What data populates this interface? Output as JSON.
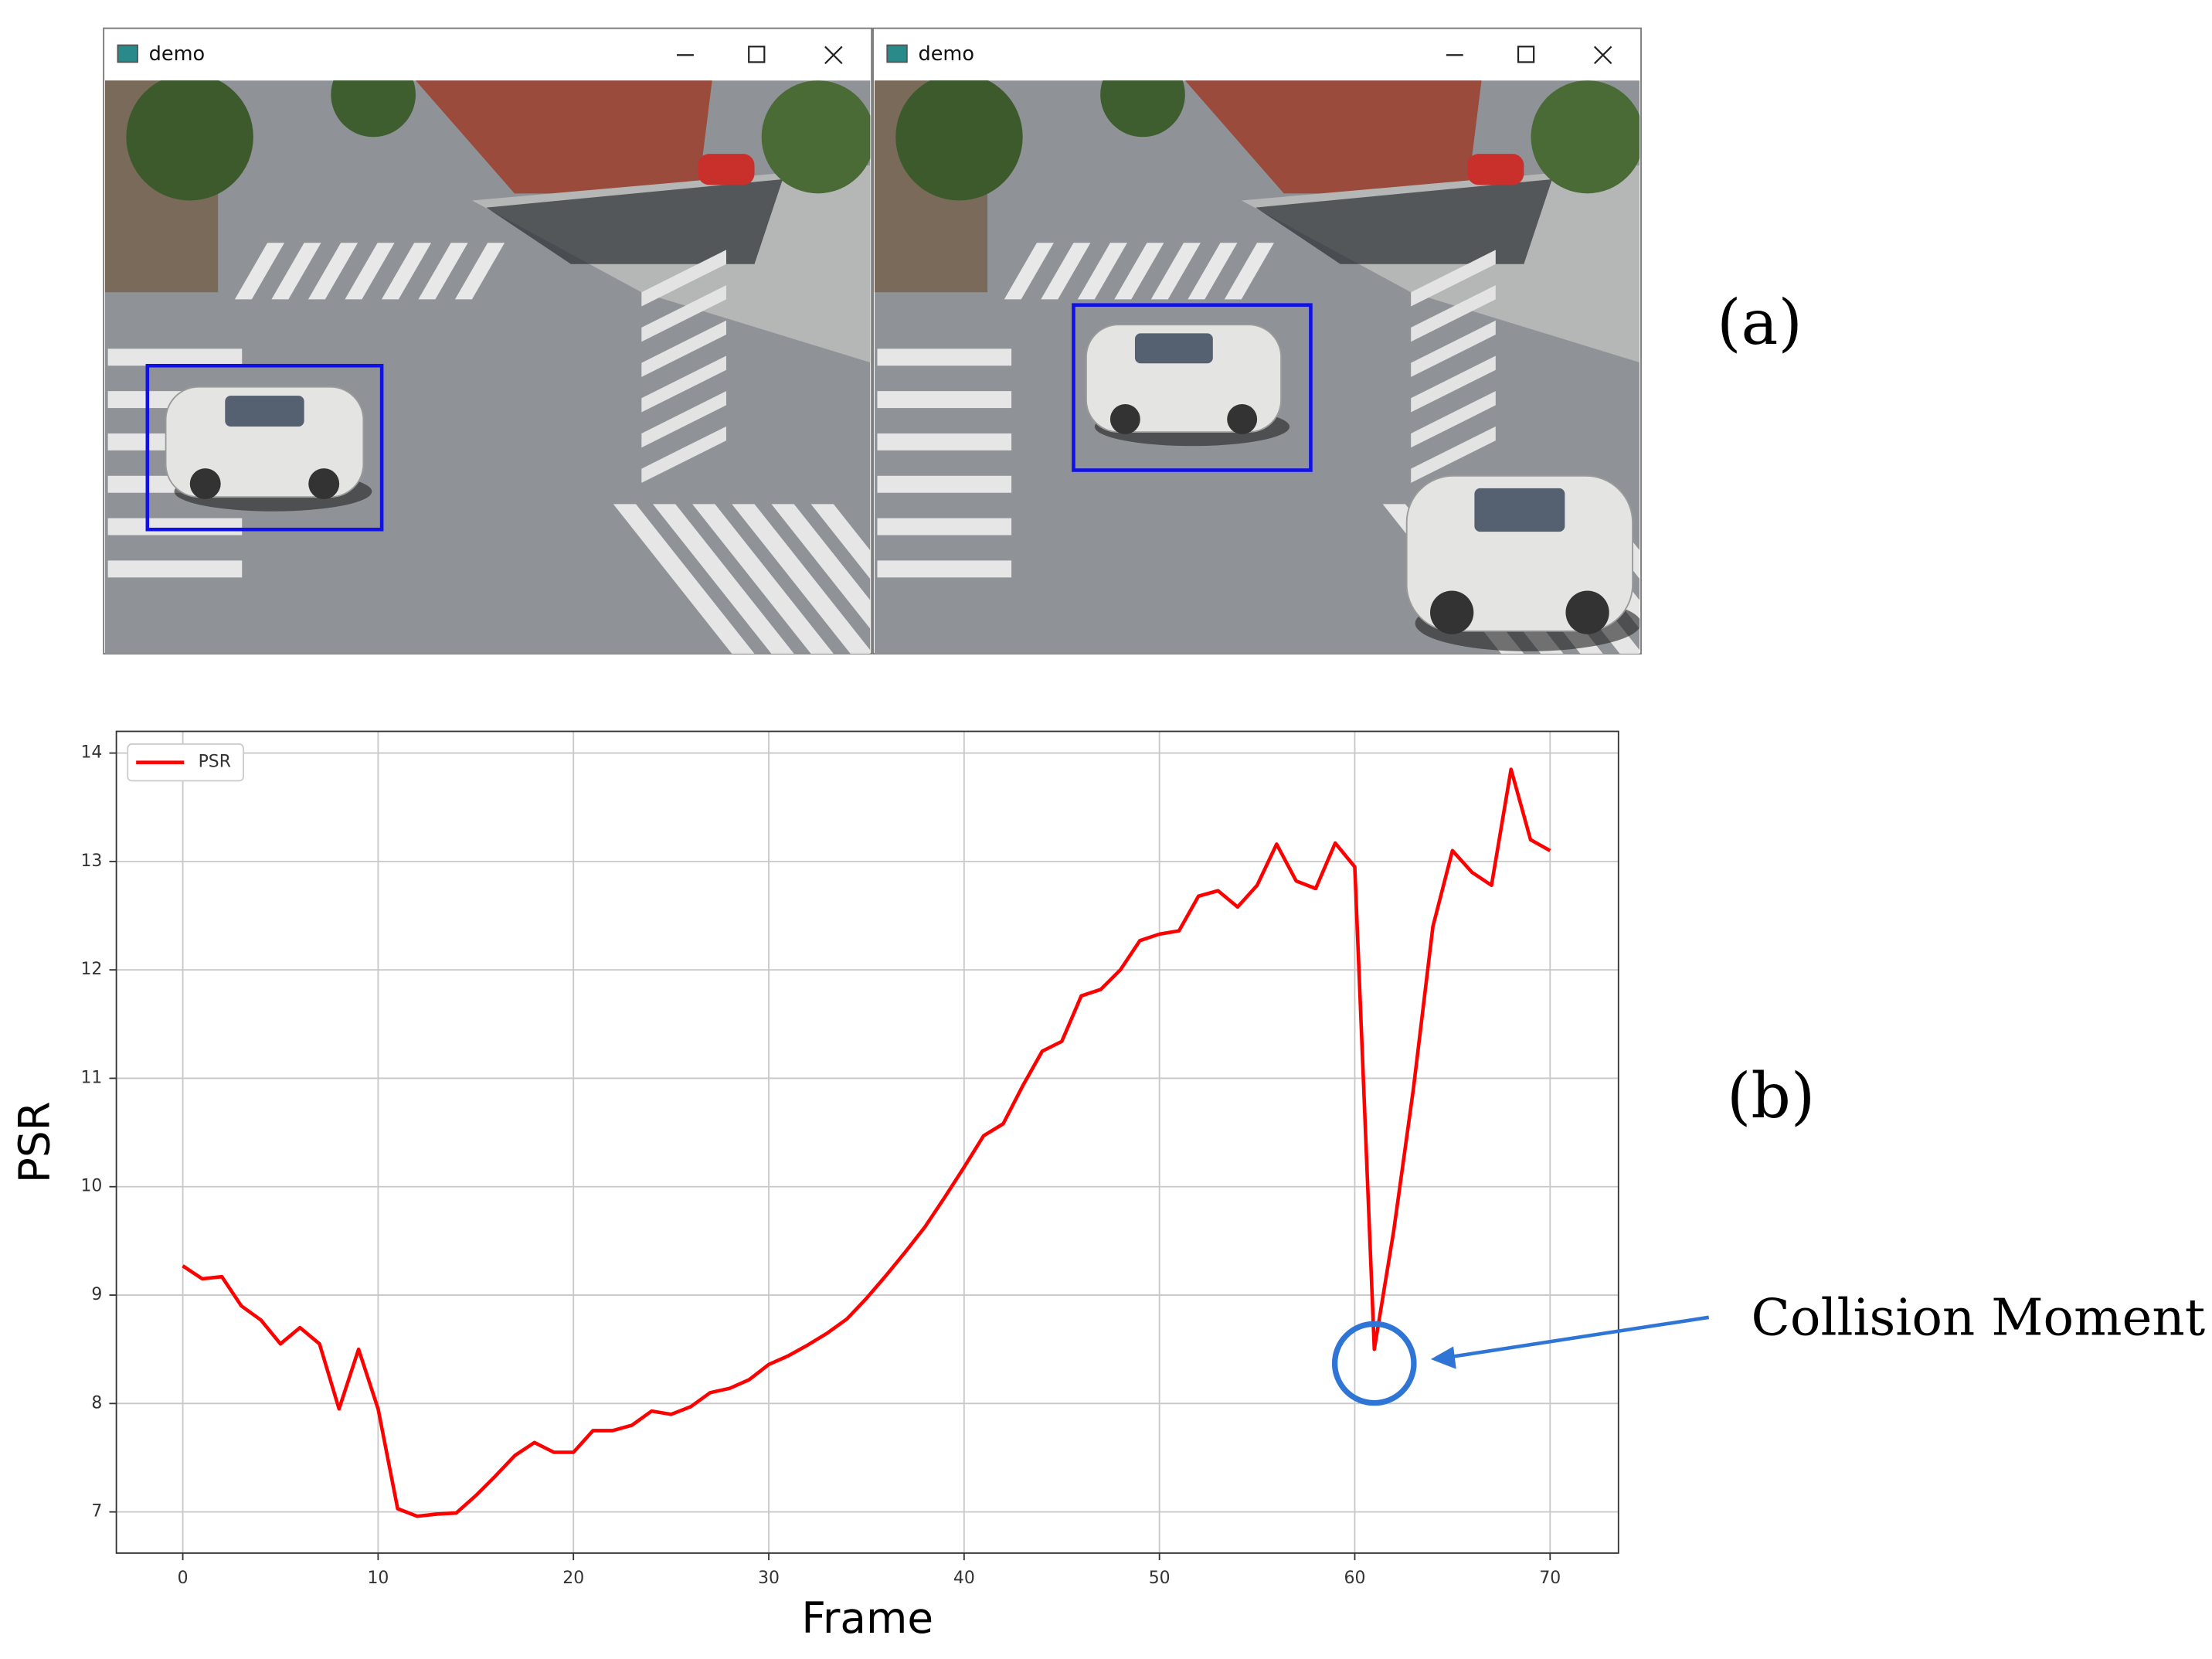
{
  "panel_a": {
    "label": "(a)",
    "windows": [
      {
        "title": "demo"
      },
      {
        "title": "demo"
      }
    ]
  },
  "chart_data": {
    "type": "line",
    "panel_label": "(b)",
    "x": [
      0,
      1,
      2,
      3,
      4,
      5,
      6,
      7,
      8,
      9,
      10,
      11,
      12,
      13,
      14,
      15,
      16,
      17,
      18,
      19,
      20,
      21,
      22,
      23,
      24,
      25,
      26,
      27,
      28,
      29,
      30,
      31,
      32,
      33,
      34,
      35,
      36,
      37,
      38,
      39,
      40,
      41,
      42,
      43,
      44,
      45,
      46,
      47,
      48,
      49,
      50,
      51,
      52,
      53,
      54,
      55,
      56,
      57,
      58,
      59,
      60,
      61,
      62,
      63,
      64,
      65,
      66,
      67,
      68,
      69,
      70
    ],
    "series": [
      {
        "name": "PSR",
        "color": "#ff0000",
        "values": [
          9.27,
          9.15,
          9.17,
          8.9,
          8.77,
          8.55,
          8.7,
          8.55,
          7.95,
          8.5,
          7.95,
          7.03,
          6.96,
          6.98,
          6.99,
          7.15,
          7.33,
          7.52,
          7.64,
          7.55,
          7.55,
          7.75,
          7.75,
          7.8,
          7.93,
          7.9,
          7.97,
          8.1,
          8.14,
          8.22,
          8.36,
          8.44,
          8.54,
          8.65,
          8.78,
          8.97,
          9.18,
          9.4,
          9.63,
          9.9,
          10.18,
          10.47,
          10.58,
          10.93,
          11.25,
          11.34,
          11.76,
          11.82,
          12.0,
          12.27,
          12.33,
          12.36,
          12.68,
          12.73,
          12.58,
          12.78,
          13.16,
          12.82,
          12.75,
          13.17,
          12.95,
          8.5,
          9.6,
          10.9,
          12.4,
          13.1,
          12.9,
          12.78,
          13.85,
          13.2,
          13.1
        ]
      }
    ],
    "xlabel": "Frame",
    "ylabel": "PSR",
    "xlim": [
      -3.4,
      73.5
    ],
    "ylim": [
      6.62,
      14.2
    ],
    "xticks": [
      0,
      10,
      20,
      30,
      40,
      50,
      60,
      70
    ],
    "yticks": [
      7,
      8,
      9,
      10,
      11,
      12,
      13,
      14
    ],
    "grid": true,
    "legend": "upper left",
    "annotation": {
      "text": "Collision Moment",
      "color": "#2f75d6"
    }
  }
}
